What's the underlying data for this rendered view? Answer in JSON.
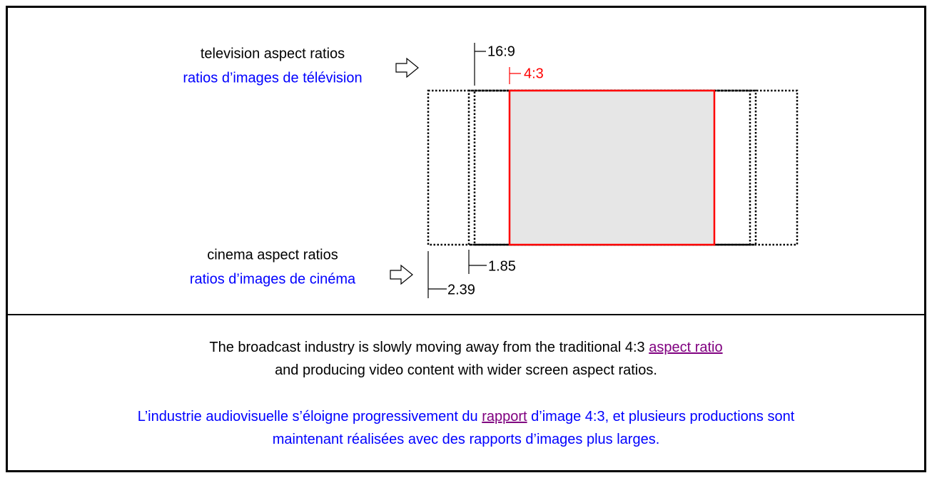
{
  "diagram": {
    "tv_label": {
      "en": "television aspect ratios",
      "fr": "ratios d’images de télévision"
    },
    "cinema_label": {
      "en": "cinema aspect ratios",
      "fr": "ratios d’images de cinéma"
    },
    "ratios": [
      "16:9",
      "4:3",
      "1.85",
      "2.39"
    ]
  },
  "caption": {
    "en": {
      "before": "The broadcast industry is slowly moving away from the traditional 4:3 ",
      "link": "aspect ratio",
      "line2": "and producing video content with wider screen aspect ratios."
    },
    "fr": {
      "before": "L’industrie audiovisuelle s’éloigne progressivement du ",
      "link": "rapport",
      "after": " d’image 4:3, et plusieurs productions sont",
      "line2": "maintenant réalisées avec des rapports d’images plus larges."
    }
  }
}
